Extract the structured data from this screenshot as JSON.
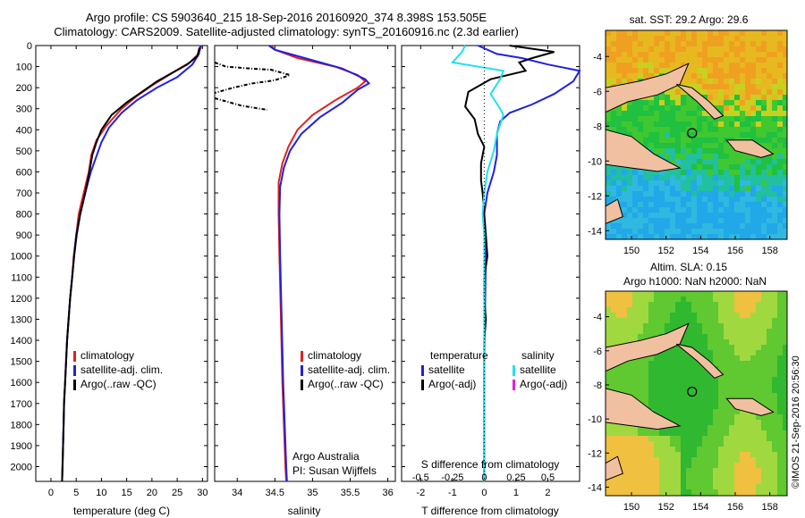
{
  "header": {
    "line1": "Argo profile: CS 5903640_215 18-Sep-2016 20160920_374 8.398S 153.505E",
    "line2": "Climatology: CARS2009. Satellite-adjusted climatology: synTS_20160916.nc (2.3d earlier)"
  },
  "depth_ticks": [
    "0",
    "100",
    "200",
    "300",
    "400",
    "500",
    "600",
    "700",
    "800",
    "900",
    "1000",
    "1100",
    "1200",
    "1300",
    "1400",
    "1500",
    "1600",
    "1700",
    "1800",
    "1900",
    "2000"
  ],
  "colors": {
    "climatology": "#e02020",
    "satellite": "#2020e0",
    "argo": "#000000",
    "argo_s_diff": "#20e0f0",
    "argo_adj_salinity": "#e020e0"
  },
  "credit": "©IMOS 21-Sep-2016 20:56:30",
  "chart_data": [
    {
      "type": "line",
      "xlabel": "temperature (deg C)",
      "xticks": [
        "0",
        "5",
        "10",
        "15",
        "20",
        "25",
        "30"
      ],
      "xlim": [
        -3,
        31
      ],
      "ylim": [
        2070,
        0
      ],
      "legend": [
        "climatology",
        "satellite-adj. clim.",
        "Argo(..raw -QC)"
      ],
      "series": [
        {
          "name": "climatology",
          "points": [
            [
              29.8,
              0
            ],
            [
              29.2,
              40
            ],
            [
              27.5,
              80
            ],
            [
              24,
              130
            ],
            [
              20,
              190
            ],
            [
              17,
              240
            ],
            [
              14,
              300
            ],
            [
              11,
              380
            ],
            [
              9,
              450
            ],
            [
              8,
              520
            ],
            [
              7.5,
              600
            ],
            [
              6.5,
              700
            ],
            [
              5.5,
              800
            ],
            [
              5,
              900
            ],
            [
              4.5,
              1000
            ],
            [
              4.2,
              1100
            ],
            [
              3.8,
              1200
            ],
            [
              3.5,
              1300
            ],
            [
              3.2,
              1400
            ],
            [
              3,
              1500
            ],
            [
              2.8,
              1600
            ],
            [
              2.6,
              1700
            ],
            [
              2.5,
              1800
            ],
            [
              2.4,
              1900
            ],
            [
              2.3,
              2000
            ],
            [
              2.2,
              2070
            ]
          ]
        },
        {
          "name": "satellite-adj. clim.",
          "points": [
            [
              29.6,
              0
            ],
            [
              29.3,
              40
            ],
            [
              28,
              90
            ],
            [
              25,
              150
            ],
            [
              21,
              200
            ],
            [
              17,
              260
            ],
            [
              14,
              320
            ],
            [
              11.5,
              390
            ],
            [
              10,
              460
            ],
            [
              8.8,
              540
            ],
            [
              7.9,
              600
            ],
            [
              6.8,
              700
            ],
            [
              5.8,
              800
            ],
            [
              5,
              900
            ],
            [
              4.6,
              1000
            ],
            [
              4.2,
              1100
            ],
            [
              3.8,
              1200
            ],
            [
              3.5,
              1300
            ],
            [
              3.2,
              1400
            ],
            [
              3,
              1500
            ],
            [
              2.8,
              1600
            ],
            [
              2.6,
              1700
            ],
            [
              2.5,
              1800
            ],
            [
              2.4,
              1900
            ],
            [
              2.3,
              2000
            ],
            [
              2.2,
              2070
            ]
          ]
        },
        {
          "name": "Argo(..raw -QC)",
          "points": [
            [
              29.4,
              10
            ],
            [
              29,
              50
            ],
            [
              27,
              90
            ],
            [
              24,
              130
            ],
            [
              21,
              170
            ],
            [
              18,
              220
            ],
            [
              15,
              270
            ],
            [
              12,
              330
            ],
            [
              10,
              400
            ],
            [
              9,
              460
            ],
            [
              8.2,
              520
            ],
            [
              7.6,
              600
            ],
            [
              6.8,
              700
            ],
            [
              5.8,
              800
            ],
            [
              5.1,
              900
            ],
            [
              4.6,
              1000
            ],
            [
              4.2,
              1100
            ],
            [
              3.8,
              1200
            ],
            [
              3.5,
              1300
            ],
            [
              3.2,
              1400
            ],
            [
              3,
              1500
            ],
            [
              2.8,
              1600
            ],
            [
              2.6,
              1700
            ],
            [
              2.5,
              1800
            ],
            [
              2.4,
              1900
            ],
            [
              2.3,
              2000
            ],
            [
              2.2,
              2070
            ]
          ]
        }
      ]
    },
    {
      "type": "line",
      "xlabel": "salinity",
      "xticks": [
        "34",
        "34.5",
        "35",
        "35.5",
        "36"
      ],
      "xlim": [
        33.7,
        36.1
      ],
      "ylim": [
        2070,
        0
      ],
      "legend": [
        "climatology",
        "satellite-adj. clim.",
        "Argo(..raw -QC)"
      ],
      "series": [
        {
          "name": "climatology",
          "points": [
            [
              34.45,
              0
            ],
            [
              34.5,
              20
            ],
            [
              34.8,
              60
            ],
            [
              35.3,
              100
            ],
            [
              35.6,
              140
            ],
            [
              35.7,
              170
            ],
            [
              35.6,
              200
            ],
            [
              35.3,
              260
            ],
            [
              35,
              330
            ],
            [
              34.8,
              400
            ],
            [
              34.68,
              480
            ],
            [
              34.6,
              560
            ],
            [
              34.55,
              650
            ],
            [
              34.55,
              800
            ],
            [
              34.56,
              1000
            ],
            [
              34.58,
              1300
            ],
            [
              34.6,
              1600
            ],
            [
              34.62,
              1800
            ],
            [
              34.64,
              2000
            ],
            [
              34.65,
              2070
            ]
          ]
        },
        {
          "name": "satellite-adj. clim.",
          "points": [
            [
              34.42,
              0
            ],
            [
              34.5,
              20
            ],
            [
              34.9,
              60
            ],
            [
              35.4,
              110
            ],
            [
              35.7,
              160
            ],
            [
              35.75,
              180
            ],
            [
              35.6,
              210
            ],
            [
              35.4,
              270
            ],
            [
              35.1,
              340
            ],
            [
              34.85,
              420
            ],
            [
              34.7,
              500
            ],
            [
              34.62,
              580
            ],
            [
              34.57,
              670
            ],
            [
              34.56,
              800
            ],
            [
              34.57,
              1000
            ],
            [
              34.59,
              1300
            ],
            [
              34.61,
              1600
            ],
            [
              34.63,
              1800
            ],
            [
              34.65,
              2000
            ],
            [
              34.66,
              2070
            ]
          ]
        },
        {
          "name": "Argo(..raw -QC)",
          "points": [
            [
              33.7,
              80
            ],
            [
              33.85,
              100
            ],
            [
              34.2,
              110
            ],
            [
              34.45,
              115
            ],
            [
              34.7,
              140
            ],
            [
              34.5,
              165
            ],
            [
              34.2,
              180
            ],
            [
              33.95,
              200
            ],
            [
              33.8,
              215
            ],
            [
              33.7,
              225
            ]
          ],
          "dashed": true
        },
        {
          "name": "Argo(..raw -QC) deep",
          "points": [
            [
              33.7,
              250
            ],
            [
              33.85,
              265
            ],
            [
              34.05,
              285
            ],
            [
              34.3,
              300
            ],
            [
              34.4,
              305
            ]
          ],
          "dashed": true
        }
      ]
    },
    {
      "type": "line",
      "xlabel": "T difference from climatology",
      "xlabel2": "S difference from climatology",
      "xticks": [
        "-2",
        "-1",
        "0",
        "1",
        "2"
      ],
      "xticks2": [
        "-0.5",
        "-0.25",
        "0",
        "0.25",
        "0.5"
      ],
      "xlim": [
        -2.6,
        3.0
      ],
      "ylim": [
        2070,
        0
      ],
      "legend_titles": [
        "temperature",
        "salinity"
      ],
      "legend": [
        "satellite",
        "Argo(-adj)",
        "satellite",
        "Argo(-adj)"
      ],
      "series": [
        {
          "name": "satellite",
          "points": [
            [
              -0.2,
              0
            ],
            [
              0.4,
              40
            ],
            [
              1.2,
              60
            ],
            [
              2.0,
              90
            ],
            [
              3.0,
              120
            ],
            [
              2.8,
              170
            ],
            [
              2.2,
              230
            ],
            [
              1.5,
              280
            ],
            [
              0.8,
              320
            ],
            [
              0.5,
              360
            ],
            [
              0.4,
              420
            ],
            [
              0.4,
              520
            ],
            [
              0.3,
              600
            ],
            [
              0.1,
              700
            ],
            [
              0,
              800
            ],
            [
              0.05,
              1000
            ],
            [
              0,
              1500
            ],
            [
              0,
              2070
            ]
          ]
        },
        {
          "name": "Argo(-adj)",
          "points": [
            [
              0.8,
              0
            ],
            [
              2.2,
              30
            ],
            [
              1.5,
              60
            ],
            [
              1.1,
              80
            ],
            [
              1.3,
              120
            ],
            [
              0.2,
              160
            ],
            [
              -0.5,
              220
            ],
            [
              -0.6,
              290
            ],
            [
              -0.3,
              350
            ],
            [
              -0.2,
              420
            ],
            [
              0,
              480
            ],
            [
              -0.1,
              560
            ],
            [
              -0.1,
              640
            ],
            [
              -0.05,
              700
            ],
            [
              0,
              800
            ],
            [
              0.05,
              900
            ],
            [
              0.1,
              1000
            ],
            [
              0,
              1100
            ],
            [
              0,
              1200
            ],
            [
              0.05,
              1300
            ],
            [
              0,
              1400
            ],
            [
              0,
              1600
            ],
            [
              0,
              2070
            ]
          ]
        },
        {
          "name": "satellite (salinity)",
          "points": [
            [
              -0.6,
              0
            ],
            [
              -0.7,
              30
            ],
            [
              -1.0,
              80
            ],
            [
              0.6,
              120
            ],
            [
              0.5,
              160
            ],
            [
              0.2,
              230
            ],
            [
              0.5,
              300
            ],
            [
              0.6,
              330
            ],
            [
              0.4,
              420
            ],
            [
              0.3,
              500
            ],
            [
              0.1,
              600
            ],
            [
              0,
              700
            ],
            [
              -0.05,
              800
            ],
            [
              0,
              900
            ],
            [
              0,
              1200
            ],
            [
              0,
              2070
            ]
          ]
        }
      ]
    },
    {
      "type": "heatmap",
      "title": "sat. SST: 29.2 Argo: 29.6",
      "xticks": [
        "150",
        "152",
        "154",
        "156",
        "158"
      ],
      "yticks": [
        "-4",
        "-6",
        "-8",
        "-10",
        "-12",
        "-14"
      ],
      "xlim": [
        148.5,
        159
      ],
      "ylim": [
        -14.5,
        -2.5
      ],
      "profile_position": [
        153.505,
        -8.398
      ]
    },
    {
      "type": "heatmap",
      "title": "Altim. SLA: 0.15",
      "subtitle": "Argo h1000: NaN h2000: NaN",
      "xticks": [
        "150",
        "152",
        "154",
        "156",
        "158"
      ],
      "yticks": [
        "-4",
        "-6",
        "-8",
        "-10",
        "-12",
        "-14"
      ],
      "xlim": [
        148.5,
        159
      ],
      "ylim": [
        -14.5,
        -2.5
      ],
      "profile_position": [
        153.505,
        -8.398
      ]
    }
  ],
  "panel2_notes": {
    "institution": "Argo Australia",
    "pi": "PI: Susan Wijffels"
  }
}
